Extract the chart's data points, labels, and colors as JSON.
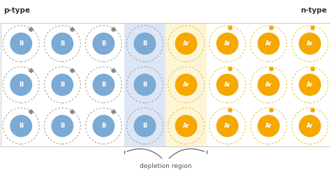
{
  "title_left": "p-type",
  "title_right": "n-type",
  "depletion_label": "depletion region",
  "bg_color": "#ffffff",
  "border_color": "#cccccc",
  "p_region_bg": "#dce6f5",
  "n_region_bg": "#fef5d6",
  "p_atom_fill": "#7baad4",
  "n_atom_fill": "#f5a800",
  "p_atom_text": "B",
  "n_atom_text": "Ar",
  "atom_text_color": "#ffffff",
  "outer_circle_color_p": "#aaaaaa",
  "outer_circle_color_n": "#e8c84a",
  "grid_rows": 3,
  "grid_cols": 8,
  "outer_r": 0.44,
  "inner_r": 0.27,
  "small_dot_r": 0.04,
  "small_dot_color_p": "#888888",
  "small_dot_color_n": "#f5a800",
  "fig_width": 4.74,
  "fig_height": 2.64,
  "dpi": 100
}
